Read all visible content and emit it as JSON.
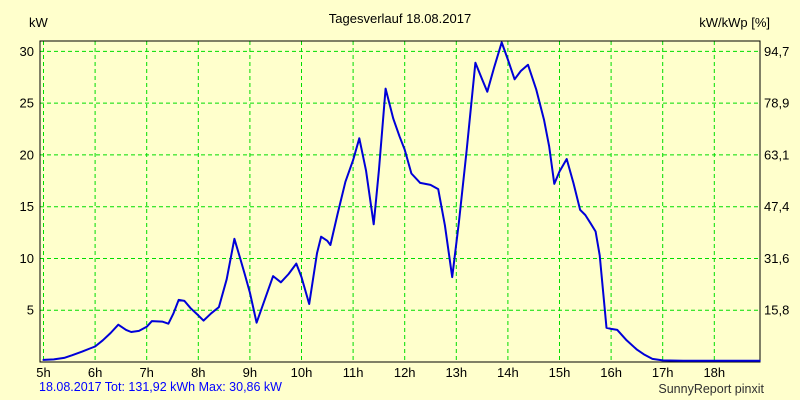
{
  "chart_data": {
    "type": "line",
    "title": "Tagesverlauf 18.08.2017",
    "grid": true,
    "legend": "none",
    "colors": {
      "background": "#FFFFCC",
      "grid": "#00DD00",
      "line": "#0000D8",
      "frame": "#000000",
      "title_text": "#000000",
      "footer_left_text": "#0000FF",
      "footer_right_text": "#303030"
    },
    "left_axis": {
      "unit": "kW",
      "ticks": [
        5,
        10,
        15,
        20,
        25,
        30
      ],
      "range": [
        0,
        31
      ]
    },
    "right_axis": {
      "unit": "kW/kWp [%]",
      "tick_labels": [
        "15,8",
        "31,6",
        "47,4",
        "63,1",
        "78,9",
        "94,7"
      ]
    },
    "x_axis": {
      "tick_hours": [
        5,
        6,
        7,
        8,
        9,
        10,
        11,
        12,
        13,
        14,
        15,
        16,
        17,
        18
      ],
      "tick_labels": [
        "5h",
        "6h",
        "7h",
        "8h",
        "9h",
        "10h",
        "11h",
        "12h",
        "13h",
        "14h",
        "15h",
        "16h",
        "17h",
        "18h"
      ],
      "range": [
        5,
        18.9
      ]
    },
    "series": [
      {
        "name": "pv-power-kw",
        "points": [
          [
            5.0,
            0.2
          ],
          [
            5.2,
            0.25
          ],
          [
            5.4,
            0.4
          ],
          [
            5.55,
            0.65
          ],
          [
            5.75,
            1.0
          ],
          [
            5.9,
            1.3
          ],
          [
            6.0,
            1.5
          ],
          [
            6.15,
            2.1
          ],
          [
            6.3,
            2.8
          ],
          [
            6.45,
            3.6
          ],
          [
            6.6,
            3.1
          ],
          [
            6.7,
            2.9
          ],
          [
            6.85,
            3.0
          ],
          [
            7.0,
            3.4
          ],
          [
            7.1,
            3.95
          ],
          [
            7.3,
            3.9
          ],
          [
            7.42,
            3.7
          ],
          [
            7.52,
            4.7
          ],
          [
            7.62,
            6.0
          ],
          [
            7.73,
            5.9
          ],
          [
            7.85,
            5.2
          ],
          [
            8.0,
            4.5
          ],
          [
            8.1,
            4.0
          ],
          [
            8.25,
            4.7
          ],
          [
            8.4,
            5.3
          ],
          [
            8.55,
            8.0
          ],
          [
            8.7,
            11.9
          ],
          [
            8.8,
            10.2
          ],
          [
            8.9,
            8.5
          ],
          [
            9.0,
            6.7
          ],
          [
            9.13,
            3.8
          ],
          [
            9.3,
            6.2
          ],
          [
            9.45,
            8.3
          ],
          [
            9.6,
            7.7
          ],
          [
            9.75,
            8.5
          ],
          [
            9.9,
            9.5
          ],
          [
            10.0,
            8.2
          ],
          [
            10.15,
            5.6
          ],
          [
            10.3,
            10.5
          ],
          [
            10.38,
            12.1
          ],
          [
            10.5,
            11.7
          ],
          [
            10.56,
            11.3
          ],
          [
            10.7,
            14.3
          ],
          [
            10.85,
            17.4
          ],
          [
            11.0,
            19.5
          ],
          [
            11.12,
            21.6
          ],
          [
            11.25,
            18.5
          ],
          [
            11.4,
            13.3
          ],
          [
            11.5,
            18.5
          ],
          [
            11.63,
            26.4
          ],
          [
            11.78,
            23.5
          ],
          [
            11.9,
            21.8
          ],
          [
            12.0,
            20.5
          ],
          [
            12.13,
            18.2
          ],
          [
            12.3,
            17.3
          ],
          [
            12.5,
            17.1
          ],
          [
            12.65,
            16.7
          ],
          [
            12.78,
            13.2
          ],
          [
            12.92,
            8.2
          ],
          [
            13.05,
            13.5
          ],
          [
            13.2,
            20.4
          ],
          [
            13.37,
            28.9
          ],
          [
            13.5,
            27.3
          ],
          [
            13.6,
            26.1
          ],
          [
            13.73,
            28.4
          ],
          [
            13.88,
            30.86
          ],
          [
            14.0,
            29.2
          ],
          [
            14.13,
            27.3
          ],
          [
            14.25,
            28.1
          ],
          [
            14.39,
            28.7
          ],
          [
            14.55,
            26.3
          ],
          [
            14.7,
            23.4
          ],
          [
            14.8,
            20.8
          ],
          [
            14.9,
            17.2
          ],
          [
            15.0,
            18.4
          ],
          [
            15.14,
            19.6
          ],
          [
            15.27,
            17.3
          ],
          [
            15.4,
            14.7
          ],
          [
            15.5,
            14.2
          ],
          [
            15.6,
            13.4
          ],
          [
            15.7,
            12.6
          ],
          [
            15.78,
            10.3
          ],
          [
            15.85,
            6.5
          ],
          [
            15.91,
            3.3
          ],
          [
            16.0,
            3.2
          ],
          [
            16.12,
            3.1
          ],
          [
            16.3,
            2.1
          ],
          [
            16.5,
            1.2
          ],
          [
            16.65,
            0.7
          ],
          [
            16.8,
            0.3
          ],
          [
            17.0,
            0.15
          ],
          [
            17.4,
            0.12
          ],
          [
            17.8,
            0.12
          ],
          [
            18.2,
            0.12
          ],
          [
            18.6,
            0.12
          ],
          [
            18.88,
            0.12
          ]
        ]
      }
    ],
    "footer_left": "18.08.2017 Tot: 131,92 kWh Max: 30,86 kW",
    "footer_right": "SunnyReport pinxit",
    "stats": {
      "date": "18.08.2017",
      "total_kwh": "131,92",
      "max_kw": "30,86"
    }
  }
}
